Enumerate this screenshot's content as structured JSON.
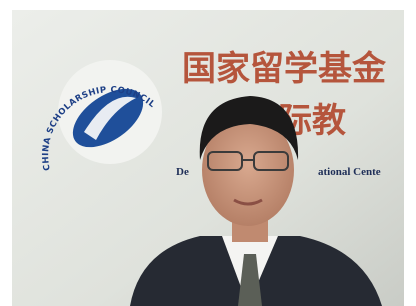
{
  "sign": {
    "title_line1": "国家留学基金",
    "title_line2": "国际教",
    "subtitle_left": "De",
    "subtitle_right": "ational Cente",
    "logo_ring": "CHINA SCHOLARSHIP COUNCIL"
  }
}
